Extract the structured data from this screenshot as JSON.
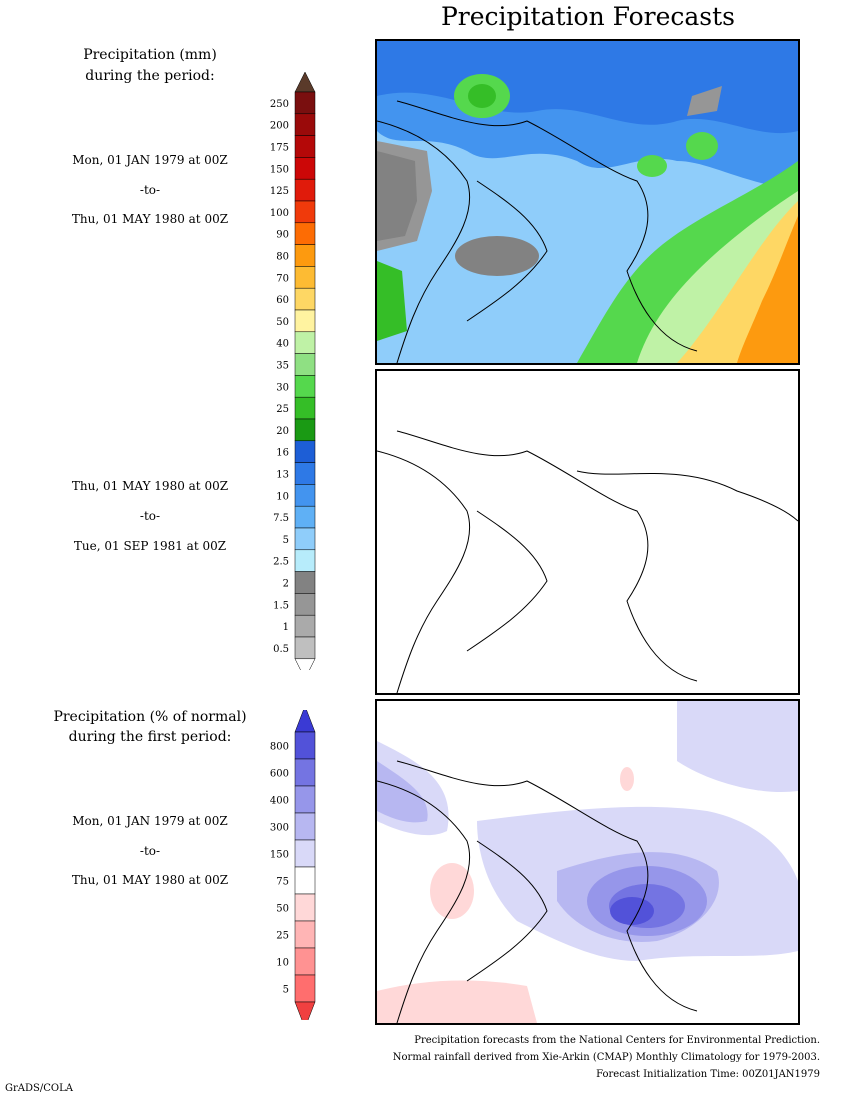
{
  "title": "Precipitation Forecasts",
  "legend1": {
    "heading_line1": "Precipitation (mm)",
    "heading_line2": "during the period:",
    "ticks": [
      "250",
      "200",
      "175",
      "150",
      "125",
      "100",
      "90",
      "80",
      "70",
      "60",
      "50",
      "40",
      "35",
      "30",
      "25",
      "20",
      "16",
      "13",
      "10",
      "7.5",
      "5",
      "2.5",
      "2",
      "1.5",
      "1",
      "0.5"
    ],
    "colors": [
      "#7a0f0f",
      "#9a0a0a",
      "#b40808",
      "#cc0707",
      "#e01b0b",
      "#f03a0b",
      "#fd6c04",
      "#fd9a0f",
      "#fdbb33",
      "#fed764",
      "#fff3a0",
      "#bff2a6",
      "#8fe083",
      "#55d84d",
      "#35be27",
      "#1a9a14",
      "#1d5ed6",
      "#2e79e6",
      "#4394ef",
      "#5fb0f5",
      "#8fcdfa",
      "#b7ecfb",
      "#828282",
      "#969696",
      "#aaaaaa",
      "#bfbfbf"
    ],
    "top_arrow_color": "#5a3a2a"
  },
  "period1": {
    "start": "Mon, 01 JAN 1979 at 00Z",
    "sep": "-to-",
    "end": "Thu, 01 MAY 1980 at 00Z"
  },
  "period2": {
    "start": "Thu, 01 MAY 1980 at 00Z",
    "sep": "-to-",
    "end": "Tue, 01 SEP 1981 at 00Z"
  },
  "legend2": {
    "heading_line1": "Precipitation (% of normal)",
    "heading_line2": "during the first period:",
    "ticks": [
      "800",
      "600",
      "400",
      "300",
      "150",
      "75",
      "50",
      "25",
      "10",
      "5"
    ],
    "colors": [
      "#5252d9",
      "#7474e2",
      "#9696ea",
      "#b7b7f1",
      "#d9d9f8",
      "#ffffff",
      "#ffd8d8",
      "#ffb5b5",
      "#ff9292",
      "#ff6e6e"
    ],
    "top_arrow_color": "#3a3ad4",
    "bottom_arrow_color": "#f04040"
  },
  "period3": {
    "start": "Mon, 01 JAN 1979 at 00Z",
    "sep": "-to-",
    "end": "Thu, 01 MAY 1980 at 00Z"
  },
  "footer": {
    "line1": "Precipitation forecasts from the National Centers for Environmental Prediction.",
    "line2": "Normal rainfall derived from Xie-Arkin (CMAP) Monthly Climatology for 1979-2003.",
    "line3": "Forecast Initialization Time: 00Z01JAN1979"
  },
  "credit": "GrADS/COLA"
}
